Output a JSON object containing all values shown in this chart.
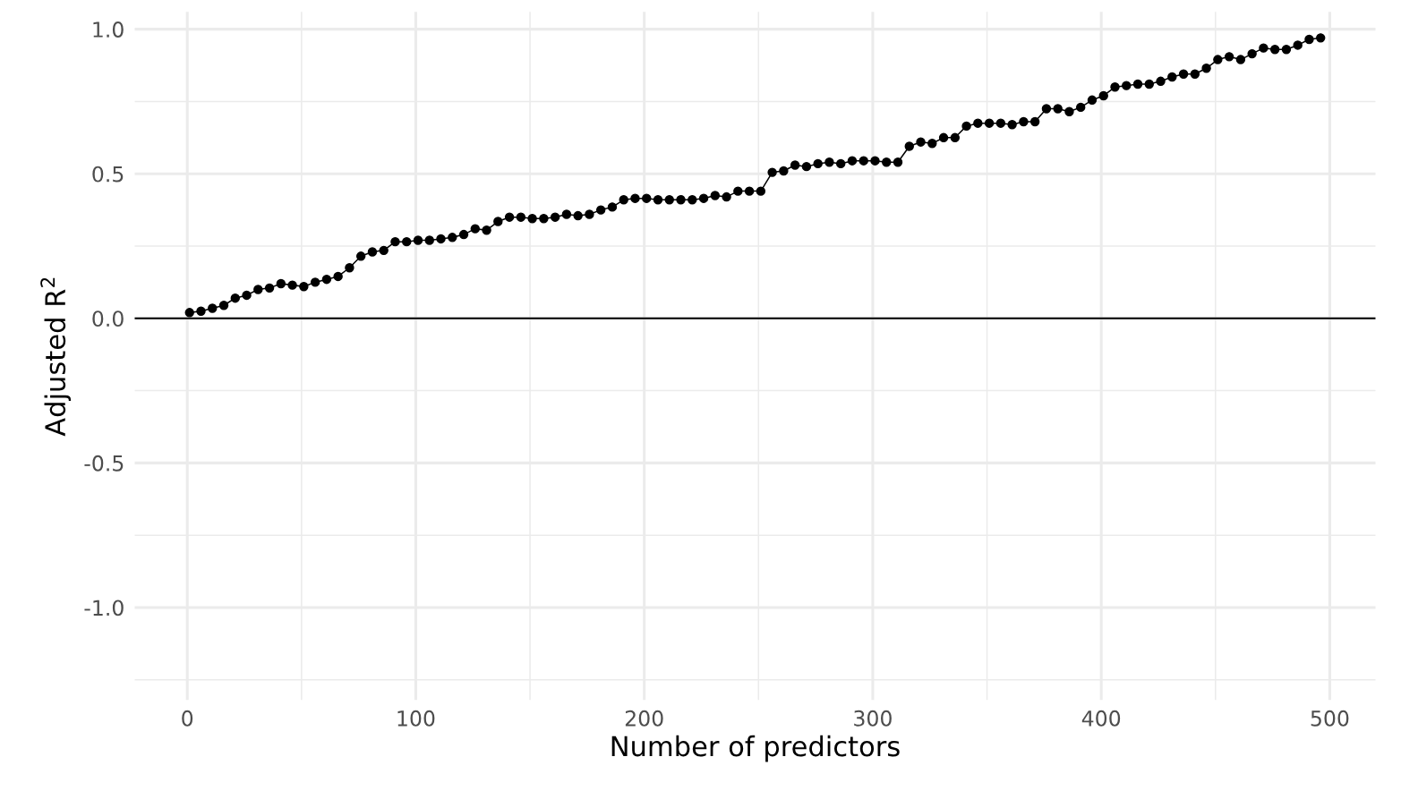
{
  "chart_data": {
    "type": "line",
    "xlabel": "Number of predictors",
    "ylabel": "Adjusted R$^{2}$",
    "x": [
      1,
      6,
      11,
      16,
      21,
      26,
      31,
      36,
      41,
      46,
      51,
      56,
      61,
      66,
      71,
      76,
      81,
      86,
      91,
      96,
      101,
      106,
      111,
      116,
      121,
      126,
      131,
      136,
      141,
      146,
      151,
      156,
      161,
      166,
      171,
      176,
      181,
      186,
      191,
      196,
      201,
      206,
      211,
      216,
      221,
      226,
      231,
      236,
      241,
      246,
      251,
      256,
      261,
      266,
      271,
      276,
      281,
      286,
      291,
      296,
      301,
      306,
      311,
      316,
      321,
      326,
      331,
      336,
      341,
      346,
      351,
      356,
      361,
      366,
      371,
      376,
      381,
      386,
      391,
      396,
      401,
      406,
      411,
      416,
      421,
      426,
      431,
      436,
      441,
      446,
      451,
      456,
      461,
      466,
      471,
      476,
      481,
      486,
      491,
      496
    ],
    "series": [
      {
        "color": "#000000",
        "values": [
          0.02,
          0.025,
          0.035,
          0.045,
          0.07,
          0.08,
          0.1,
          0.105,
          0.12,
          0.115,
          0.11,
          0.125,
          0.135,
          0.145,
          0.175,
          0.215,
          0.23,
          0.235,
          0.265,
          0.265,
          0.27,
          0.27,
          0.275,
          0.28,
          0.29,
          0.31,
          0.305,
          0.335,
          0.35,
          0.35,
          0.345,
          0.345,
          0.35,
          0.36,
          0.355,
          0.36,
          0.375,
          0.385,
          0.41,
          0.415,
          0.415,
          0.41,
          0.41,
          0.41,
          0.41,
          0.415,
          0.425,
          0.42,
          0.44,
          0.44,
          0.44,
          0.505,
          0.51,
          0.53,
          0.525,
          0.535,
          0.54,
          0.535,
          0.545,
          0.545,
          0.545,
          0.54,
          0.54,
          0.595,
          0.61,
          0.605,
          0.625,
          0.625,
          0.665,
          0.675,
          0.675,
          0.675,
          0.67,
          0.68,
          0.68,
          0.725,
          0.725,
          0.715,
          0.73,
          0.755,
          0.77,
          0.8,
          0.805,
          0.81,
          0.81,
          0.82,
          0.835,
          0.845,
          0.845,
          0.865,
          0.895,
          0.905,
          0.895,
          0.915,
          0.935,
          0.93,
          0.93,
          0.945,
          0.965,
          0.97
        ]
      }
    ],
    "xlim": [
      -23,
      520
    ],
    "ylim": [
      -1.32,
      1.06
    ],
    "xticks": [
      0,
      100,
      200,
      300,
      400,
      500
    ],
    "yticks": [
      {
        "value": -1,
        "label": "-1.0"
      },
      {
        "value": -0.5,
        "label": "-0.5"
      },
      {
        "value": 0,
        "label": "0.0"
      },
      {
        "value": 0.5,
        "label": "0.5"
      },
      {
        "value": 1,
        "label": "1.0"
      }
    ],
    "ref_lines": [
      {
        "axis": "y",
        "value": 0,
        "color": "#000000"
      }
    ],
    "grid": true,
    "marker": "circle",
    "line_style": "solid",
    "legend": false
  }
}
